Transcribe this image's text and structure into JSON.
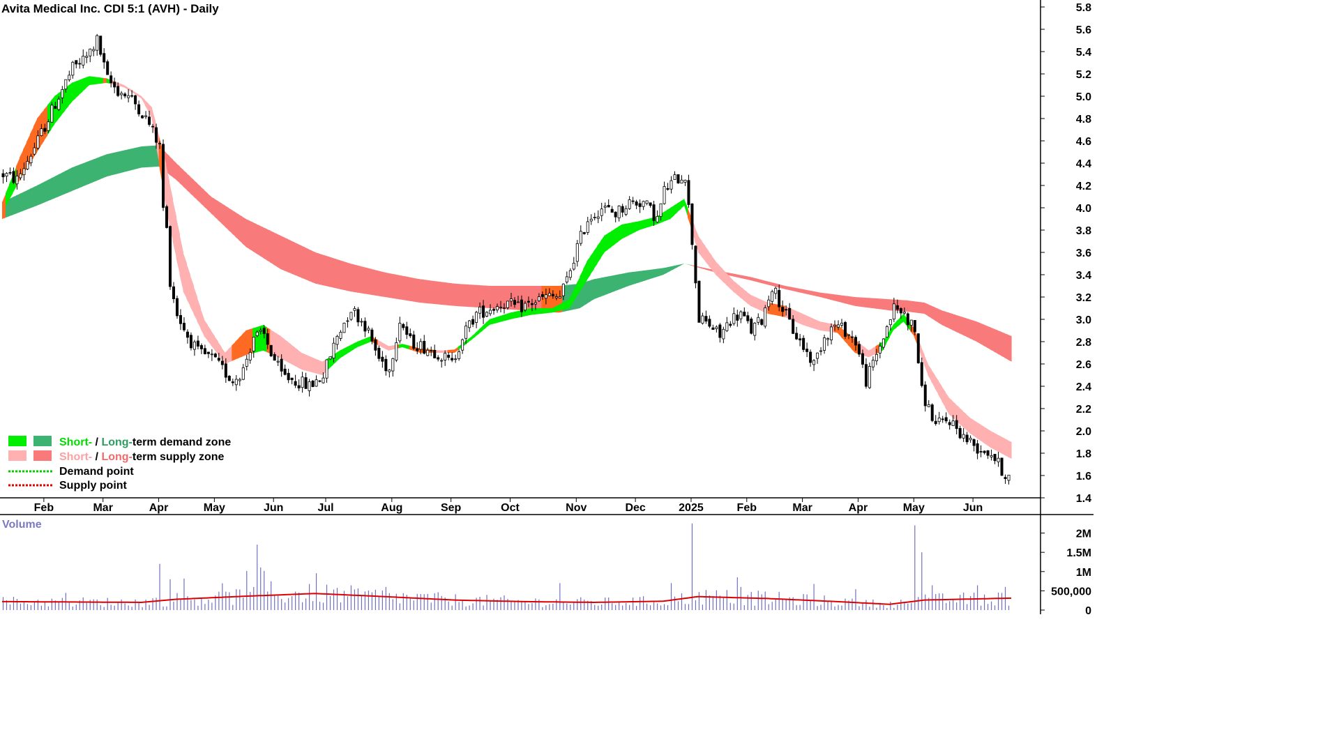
{
  "chart_data": [
    {
      "type": "candlestick",
      "title": "Avita Medical Inc. CDI 5:1 (AVH) - Daily",
      "y_ticks": [
        "5.8",
        "5.6",
        "5.4",
        "5.2",
        "5.0",
        "4.8",
        "4.6",
        "4.4",
        "4.2",
        "4.0",
        "3.8",
        "3.6",
        "3.4",
        "3.2",
        "3.0",
        "2.8",
        "2.6",
        "2.4",
        "2.2",
        "2.0",
        "1.8",
        "1.6",
        "1.4"
      ],
      "ylim": [
        1.4,
        5.8
      ],
      "x_ticks": [
        "Feb",
        "Mar",
        "Apr",
        "May",
        "Jun",
        "Jul",
        "Aug",
        "Sep",
        "Oct",
        "Nov",
        "Dec",
        "2025",
        "Feb",
        "Mar",
        "Apr",
        "May",
        "Jun"
      ],
      "grid": false,
      "legend_position": "bottom-left",
      "legend": [
        {
          "prefix": "Short-",
          "sep": " / ",
          "prefix2": "Long-",
          "text": "term demand zone"
        },
        {
          "prefix": "Short-",
          "sep": " / ",
          "prefix2": "Long-",
          "text": "term supply zone"
        },
        {
          "text": "Demand point"
        },
        {
          "text": "Supply point"
        }
      ],
      "colors": {
        "short_demand": "#00ee00",
        "long_demand": "#3cb371",
        "short_supply": "#ffb0b0",
        "long_supply": "#f87a7a",
        "transition": "#ff6a22",
        "candle": "#000000",
        "demand_point": "#00cc00",
        "supply_point": "#dd0000"
      },
      "price_path": [
        [
          0,
          4.3
        ],
        [
          4,
          4.25
        ],
        [
          10,
          4.6
        ],
        [
          16,
          5.0
        ],
        [
          20,
          5.25
        ],
        [
          24,
          5.35
        ],
        [
          27,
          5.5
        ],
        [
          30,
          5.15
        ],
        [
          33,
          5.05
        ],
        [
          36,
          5.0
        ],
        [
          39,
          4.9
        ],
        [
          42,
          4.75
        ],
        [
          45,
          4.55
        ],
        [
          46,
          4.0
        ],
        [
          47,
          3.8
        ],
        [
          48,
          3.35
        ],
        [
          50,
          3.05
        ],
        [
          53,
          2.85
        ],
        [
          56,
          2.7
        ],
        [
          60,
          2.65
        ],
        [
          63,
          2.55
        ],
        [
          66,
          2.45
        ],
        [
          69,
          2.55
        ],
        [
          72,
          2.85
        ],
        [
          75,
          2.85
        ],
        [
          77,
          2.7
        ],
        [
          80,
          2.5
        ],
        [
          84,
          2.45
        ],
        [
          88,
          2.4
        ],
        [
          92,
          2.5
        ],
        [
          96,
          2.85
        ],
        [
          100,
          3.1
        ],
        [
          104,
          2.95
        ],
        [
          108,
          2.65
        ],
        [
          111,
          2.55
        ],
        [
          114,
          3.0
        ],
        [
          117,
          2.8
        ],
        [
          121,
          2.75
        ],
        [
          125,
          2.7
        ],
        [
          129,
          2.6
        ],
        [
          132,
          2.85
        ],
        [
          136,
          3.05
        ],
        [
          140,
          3.1
        ],
        [
          144,
          3.15
        ],
        [
          148,
          3.1
        ],
        [
          152,
          3.15
        ],
        [
          156,
          3.2
        ],
        [
          160,
          3.2
        ],
        [
          162,
          3.35
        ],
        [
          165,
          3.65
        ],
        [
          168,
          3.9
        ],
        [
          172,
          4.0
        ],
        [
          176,
          3.95
        ],
        [
          180,
          4.05
        ],
        [
          184,
          4.05
        ],
        [
          188,
          3.9
        ],
        [
          190,
          4.15
        ],
        [
          193,
          4.25
        ],
        [
          196,
          4.3
        ],
        [
          198,
          3.7
        ],
        [
          200,
          3.0
        ],
        [
          203,
          2.95
        ],
        [
          206,
          2.85
        ],
        [
          209,
          3.0
        ],
        [
          212,
          3.05
        ],
        [
          215,
          2.9
        ],
        [
          218,
          3.0
        ],
        [
          221,
          3.3
        ],
        [
          224,
          3.1
        ],
        [
          227,
          2.9
        ],
        [
          230,
          2.75
        ],
        [
          233,
          2.6
        ],
        [
          236,
          2.85
        ],
        [
          239,
          2.95
        ],
        [
          242,
          2.9
        ],
        [
          245,
          2.8
        ],
        [
          248,
          2.45
        ],
        [
          250,
          2.6
        ],
        [
          253,
          2.85
        ],
        [
          256,
          3.1
        ],
        [
          259,
          3.05
        ],
        [
          262,
          2.9
        ],
        [
          264,
          2.35
        ],
        [
          266,
          2.2
        ],
        [
          268,
          2.05
        ],
        [
          272,
          2.1
        ],
        [
          276,
          1.95
        ],
        [
          280,
          1.85
        ],
        [
          284,
          1.8
        ],
        [
          287,
          1.65
        ],
        [
          290,
          1.55
        ]
      ],
      "short_ma_upper": [
        [
          0,
          4.05
        ],
        [
          5,
          4.45
        ],
        [
          10,
          4.8
        ],
        [
          15,
          5.0
        ],
        [
          20,
          5.12
        ],
        [
          25,
          5.18
        ],
        [
          30,
          5.16
        ],
        [
          35,
          5.1
        ],
        [
          40,
          5.0
        ],
        [
          43,
          4.9
        ],
        [
          47,
          4.4
        ],
        [
          52,
          3.6
        ],
        [
          58,
          3.0
        ],
        [
          64,
          2.7
        ],
        [
          70,
          2.9
        ],
        [
          75,
          2.95
        ],
        [
          80,
          2.85
        ],
        [
          86,
          2.7
        ],
        [
          92,
          2.62
        ],
        [
          97,
          2.72
        ],
        [
          102,
          2.8
        ],
        [
          106,
          2.85
        ],
        [
          111,
          2.76
        ],
        [
          115,
          2.78
        ],
        [
          120,
          2.74
        ],
        [
          126,
          2.72
        ],
        [
          130,
          2.73
        ],
        [
          135,
          2.85
        ],
        [
          140,
          3.0
        ],
        [
          146,
          3.06
        ],
        [
          152,
          3.1
        ],
        [
          158,
          3.1
        ],
        [
          163,
          3.18
        ],
        [
          168,
          3.52
        ],
        [
          173,
          3.75
        ],
        [
          178,
          3.85
        ],
        [
          183,
          3.88
        ],
        [
          188,
          3.92
        ],
        [
          192,
          4.0
        ],
        [
          196,
          4.08
        ],
        [
          200,
          3.75
        ],
        [
          205,
          3.52
        ],
        [
          210,
          3.35
        ],
        [
          215,
          3.22
        ],
        [
          220,
          3.15
        ],
        [
          225,
          3.12
        ],
        [
          230,
          3.05
        ],
        [
          235,
          2.98
        ],
        [
          240,
          2.95
        ],
        [
          245,
          2.82
        ],
        [
          249,
          2.72
        ],
        [
          253,
          2.8
        ],
        [
          256,
          2.95
        ],
        [
          259,
          3.05
        ],
        [
          262,
          2.92
        ],
        [
          266,
          2.6
        ],
        [
          272,
          2.3
        ],
        [
          278,
          2.12
        ],
        [
          284,
          2.0
        ],
        [
          290,
          1.9
        ]
      ],
      "short_ma_lower": [
        [
          0,
          3.95
        ],
        [
          5,
          4.25
        ],
        [
          10,
          4.5
        ],
        [
          15,
          4.75
        ],
        [
          20,
          4.95
        ],
        [
          25,
          5.1
        ],
        [
          30,
          5.12
        ],
        [
          35,
          5.08
        ],
        [
          40,
          4.98
        ],
        [
          43,
          4.8
        ],
        [
          47,
          4.0
        ],
        [
          52,
          3.25
        ],
        [
          58,
          2.85
        ],
        [
          64,
          2.6
        ],
        [
          70,
          2.68
        ],
        [
          75,
          2.72
        ],
        [
          80,
          2.65
        ],
        [
          86,
          2.55
        ],
        [
          92,
          2.5
        ],
        [
          97,
          2.65
        ],
        [
          102,
          2.75
        ],
        [
          106,
          2.8
        ],
        [
          111,
          2.72
        ],
        [
          115,
          2.75
        ],
        [
          120,
          2.7
        ],
        [
          126,
          2.7
        ],
        [
          130,
          2.7
        ],
        [
          135,
          2.82
        ],
        [
          140,
          2.95
        ],
        [
          146,
          3.0
        ],
        [
          152,
          3.04
        ],
        [
          158,
          3.06
        ],
        [
          163,
          3.1
        ],
        [
          168,
          3.35
        ],
        [
          173,
          3.6
        ],
        [
          178,
          3.72
        ],
        [
          183,
          3.8
        ],
        [
          188,
          3.85
        ],
        [
          192,
          3.9
        ],
        [
          196,
          4.02
        ],
        [
          200,
          3.6
        ],
        [
          205,
          3.4
        ],
        [
          210,
          3.25
        ],
        [
          215,
          3.12
        ],
        [
          220,
          3.05
        ],
        [
          225,
          3.02
        ],
        [
          230,
          2.95
        ],
        [
          235,
          2.9
        ],
        [
          240,
          2.88
        ],
        [
          245,
          2.7
        ],
        [
          249,
          2.66
        ],
        [
          253,
          2.72
        ],
        [
          256,
          2.9
        ],
        [
          259,
          2.98
        ],
        [
          262,
          2.85
        ],
        [
          266,
          2.5
        ],
        [
          272,
          2.15
        ],
        [
          278,
          1.98
        ],
        [
          284,
          1.85
        ],
        [
          290,
          1.75
        ]
      ],
      "long_ma_upper": [
        [
          0,
          4.05
        ],
        [
          10,
          4.2
        ],
        [
          20,
          4.36
        ],
        [
          30,
          4.48
        ],
        [
          40,
          4.55
        ],
        [
          45,
          4.56
        ],
        [
          50,
          4.4
        ],
        [
          60,
          4.1
        ],
        [
          70,
          3.9
        ],
        [
          80,
          3.75
        ],
        [
          90,
          3.6
        ],
        [
          100,
          3.5
        ],
        [
          110,
          3.42
        ],
        [
          120,
          3.36
        ],
        [
          130,
          3.32
        ],
        [
          140,
          3.3
        ],
        [
          150,
          3.3
        ],
        [
          160,
          3.3
        ],
        [
          166,
          3.32
        ],
        [
          170,
          3.36
        ],
        [
          180,
          3.42
        ],
        [
          190,
          3.46
        ],
        [
          196,
          3.5
        ],
        [
          205,
          3.44
        ],
        [
          215,
          3.38
        ],
        [
          225,
          3.3
        ],
        [
          235,
          3.24
        ],
        [
          245,
          3.2
        ],
        [
          255,
          3.18
        ],
        [
          260,
          3.17
        ],
        [
          265,
          3.15
        ],
        [
          270,
          3.08
        ],
        [
          280,
          2.98
        ],
        [
          290,
          2.85
        ]
      ],
      "long_ma_lower": [
        [
          0,
          3.9
        ],
        [
          10,
          4.02
        ],
        [
          20,
          4.15
        ],
        [
          30,
          4.28
        ],
        [
          40,
          4.36
        ],
        [
          45,
          4.37
        ],
        [
          50,
          4.25
        ],
        [
          60,
          3.95
        ],
        [
          70,
          3.65
        ],
        [
          80,
          3.45
        ],
        [
          90,
          3.32
        ],
        [
          100,
          3.25
        ],
        [
          110,
          3.2
        ],
        [
          120,
          3.15
        ],
        [
          130,
          3.12
        ],
        [
          140,
          3.1
        ],
        [
          150,
          3.08
        ],
        [
          160,
          3.06
        ],
        [
          166,
          3.1
        ],
        [
          170,
          3.18
        ],
        [
          180,
          3.3
        ],
        [
          190,
          3.4
        ],
        [
          196,
          3.5
        ],
        [
          205,
          3.42
        ],
        [
          215,
          3.35
        ],
        [
          225,
          3.27
        ],
        [
          235,
          3.2
        ],
        [
          245,
          3.12
        ],
        [
          255,
          3.08
        ],
        [
          260,
          3.07
        ],
        [
          265,
          3.05
        ],
        [
          270,
          2.95
        ],
        [
          280,
          2.8
        ],
        [
          290,
          2.62
        ]
      ]
    },
    {
      "type": "bar",
      "title": "Volume",
      "y_ticks": [
        "2M",
        "1.5M",
        "1M",
        "500,000",
        "0"
      ],
      "ylim": [
        0,
        2300000
      ],
      "colors": {
        "bars": "#7070c0",
        "average": "#dd0000"
      },
      "spikes": [
        [
          45,
          1200000
        ],
        [
          48,
          800000
        ],
        [
          73,
          1700000
        ],
        [
          110,
          600000
        ],
        [
          160,
          700000
        ],
        [
          192,
          700000
        ],
        [
          198,
          2250000
        ],
        [
          212,
          600000
        ],
        [
          262,
          2200000
        ],
        [
          264,
          1500000
        ],
        [
          288,
          600000
        ]
      ],
      "volume_avg": [
        [
          0,
          220000
        ],
        [
          40,
          200000
        ],
        [
          50,
          280000
        ],
        [
          70,
          360000
        ],
        [
          90,
          430000
        ],
        [
          110,
          350000
        ],
        [
          130,
          260000
        ],
        [
          150,
          220000
        ],
        [
          170,
          200000
        ],
        [
          190,
          230000
        ],
        [
          200,
          350000
        ],
        [
          220,
          300000
        ],
        [
          240,
          220000
        ],
        [
          255,
          150000
        ],
        [
          265,
          260000
        ],
        [
          290,
          310000
        ]
      ]
    }
  ]
}
